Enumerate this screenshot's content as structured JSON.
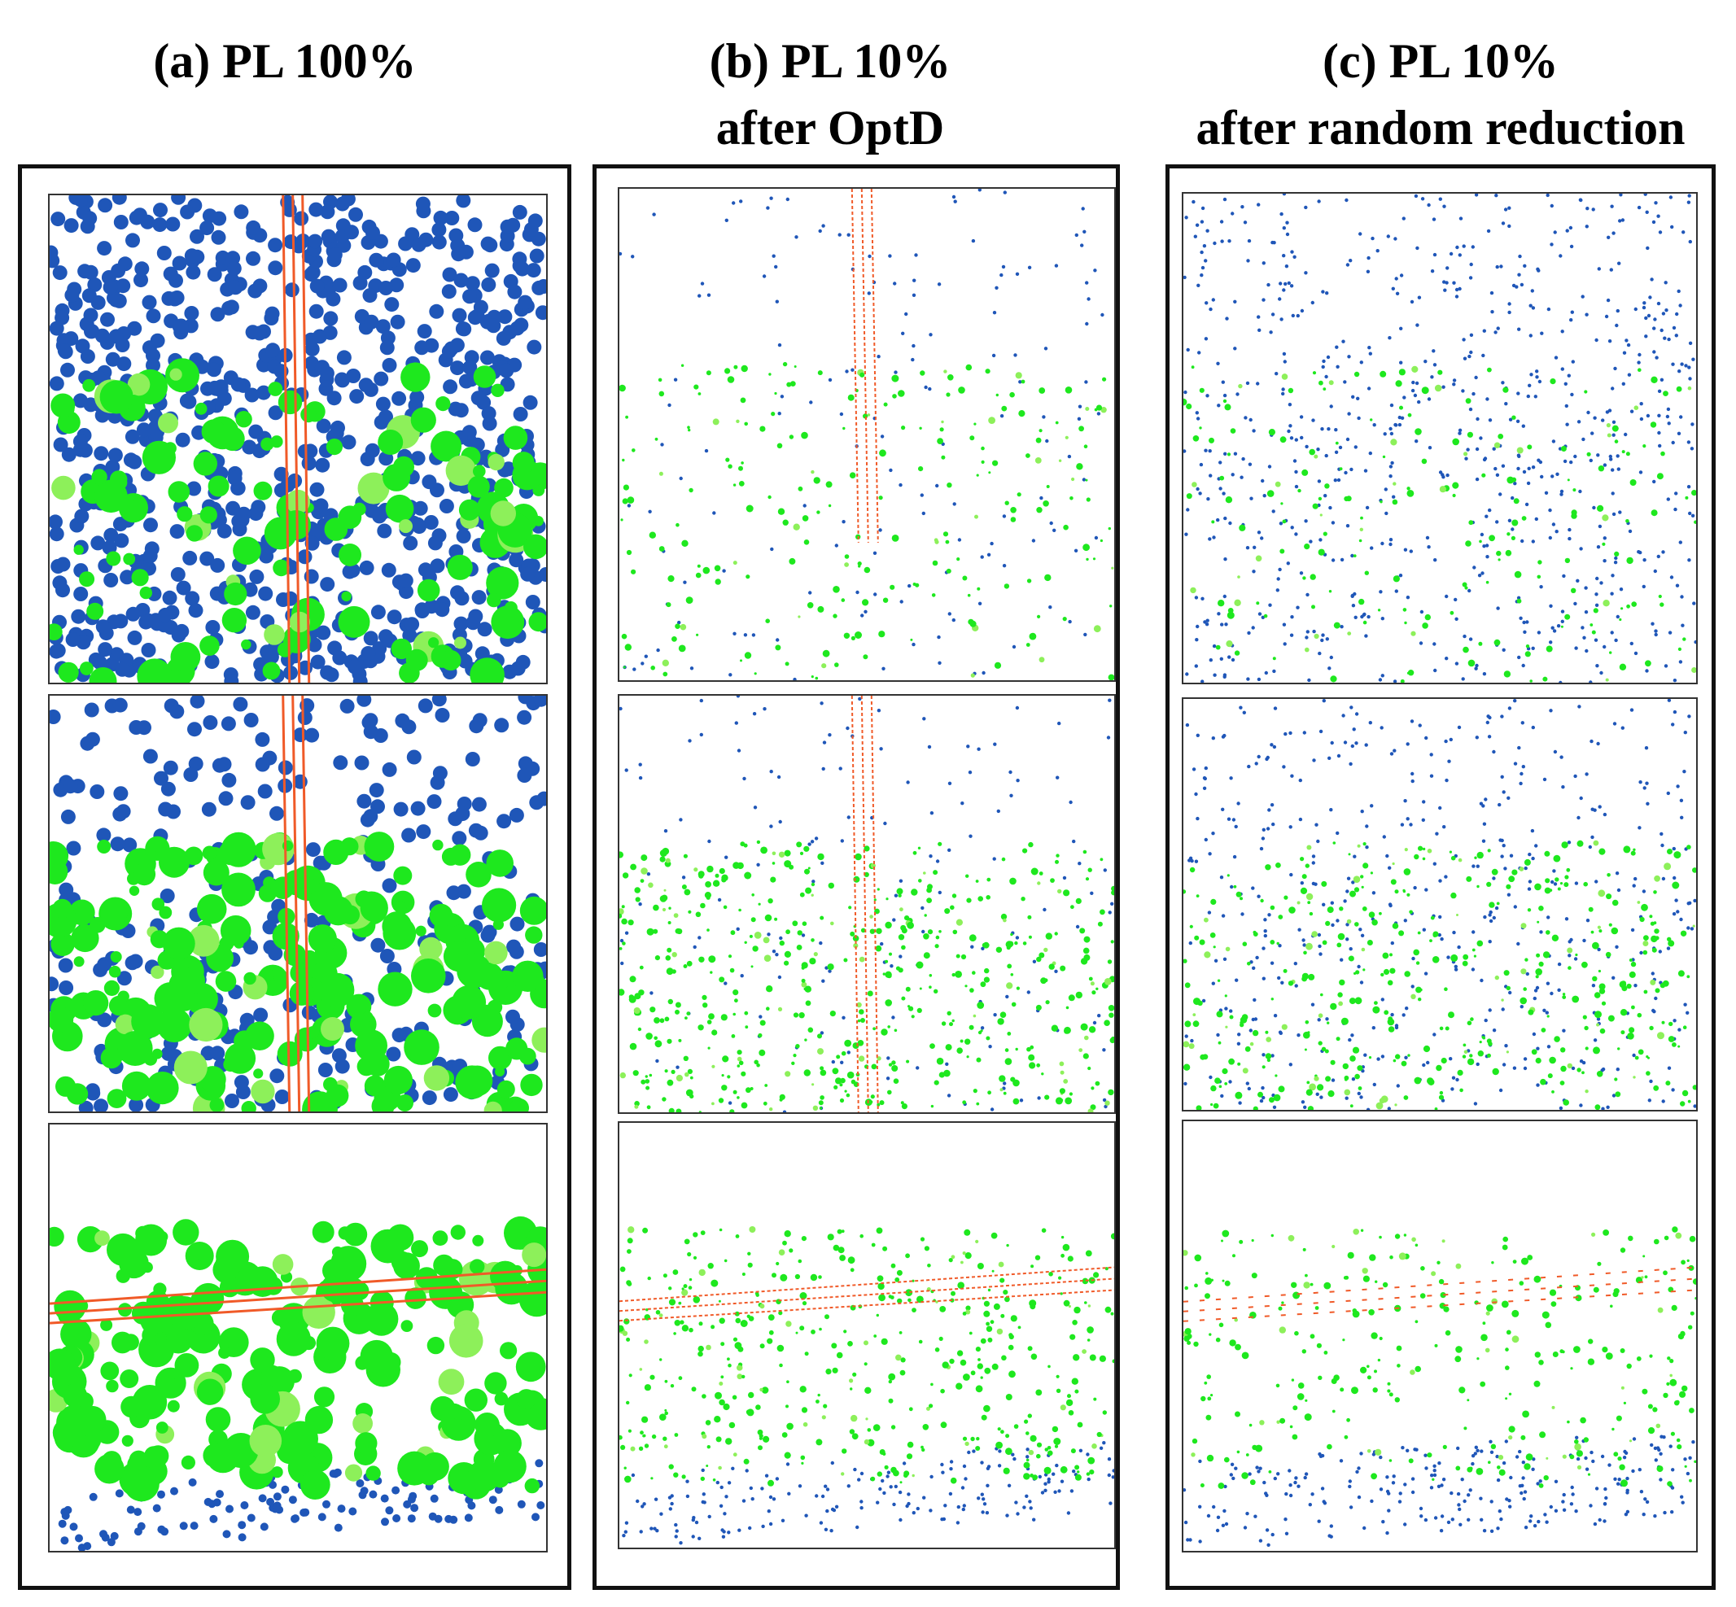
{
  "columns": [
    {
      "id": "a",
      "title_line1": "(a) PL 100%",
      "title_line2": "",
      "panels": [
        {
          "view": "top-view",
          "ground_level": 0.62,
          "vegetation_level": 0.42,
          "powerline_level": 1.0
        },
        {
          "view": "top-view",
          "ground_level": 0.2,
          "vegetation_level": 0.72,
          "powerline_level": 1.0
        },
        {
          "view": "side-view",
          "ground_level": 0.08,
          "vegetation_level": 0.75,
          "powerline_level": 1.0
        }
      ]
    },
    {
      "id": "b",
      "title_line1": "(b) PL 10%",
      "title_line2": "after OptD",
      "panels": [
        {
          "view": "top-view",
          "ground_level": 0.08,
          "vegetation_level": 0.22,
          "powerline_level": 0.6
        },
        {
          "view": "top-view",
          "ground_level": 0.08,
          "vegetation_level": 0.55,
          "powerline_level": 0.5
        },
        {
          "view": "side-view",
          "ground_level": 0.15,
          "vegetation_level": 0.45,
          "powerline_level": 0.6
        }
      ]
    },
    {
      "id": "c",
      "title_line1": "(c) PL 10%",
      "title_line2": "after random reduction",
      "panels": [
        {
          "view": "top-view",
          "ground_level": 0.55,
          "vegetation_level": 0.2,
          "powerline_level": 0.1
        },
        {
          "view": "top-view",
          "ground_level": 0.35,
          "vegetation_level": 0.45,
          "powerline_level": 0.1
        },
        {
          "view": "side-view",
          "ground_level": 0.22,
          "vegetation_level": 0.3,
          "powerline_level": 0.2
        }
      ]
    }
  ],
  "colors": {
    "ground": "#1f56b8",
    "vegetation": "#1ee81e",
    "vegetation_light": "#8df05a",
    "powerline": "#f05a28",
    "background": "#ffffff",
    "frame": "#111111"
  }
}
